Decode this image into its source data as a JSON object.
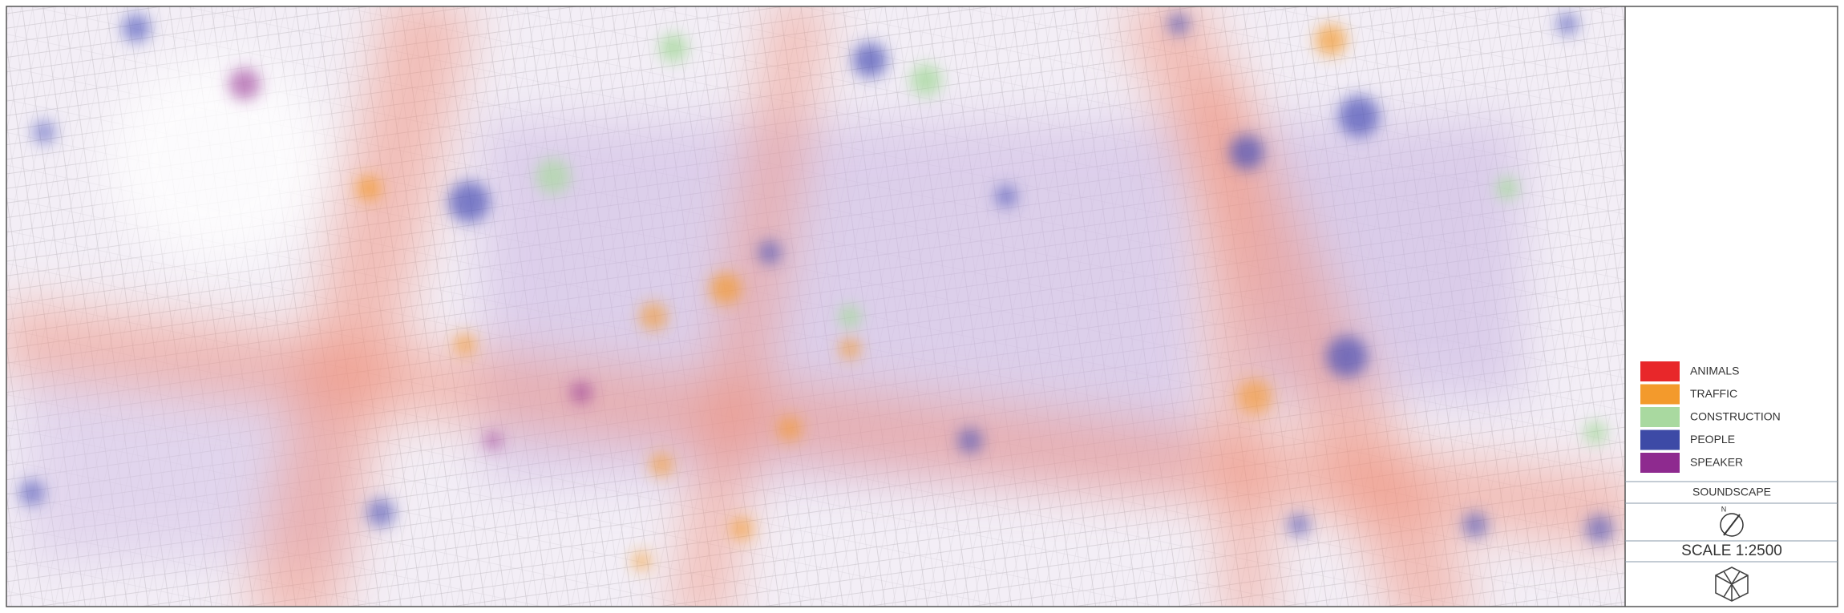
{
  "legend": [
    {
      "label": "ANIMALS",
      "color": "#e8272a"
    },
    {
      "label": "TRAFFIC",
      "color": "#f39a2c"
    },
    {
      "label": "CONSTRUCTION",
      "color": "#a9d9a0"
    },
    {
      "label": "PEOPLE",
      "color": "#3d4aa6"
    },
    {
      "label": "SPEAKER",
      "color": "#8e2a8f"
    }
  ],
  "title": "SOUNDSCAPE",
  "compass": "N",
  "scale": "SCALE 1:2500"
}
